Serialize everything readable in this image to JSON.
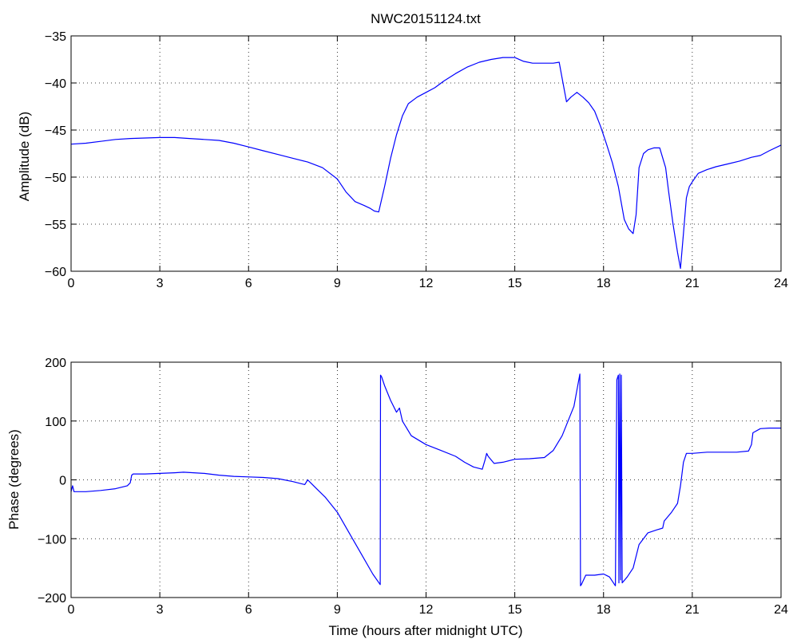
{
  "chart_data": [
    {
      "type": "line",
      "title": "NWC20151124.txt",
      "xlabel": "",
      "ylabel": "Amplitude (dB)",
      "xlim": [
        0,
        24
      ],
      "ylim": [
        -60,
        -35
      ],
      "xticks": [
        0,
        3,
        6,
        9,
        12,
        15,
        18,
        21,
        24
      ],
      "yticks": [
        -60,
        -55,
        -50,
        -45,
        -40,
        -35
      ],
      "xtick_labels": [
        "0",
        "3",
        "6",
        "9",
        "12",
        "15",
        "18",
        "21",
        "24"
      ],
      "ytick_labels": [
        "−60",
        "−55",
        "−50",
        "−45",
        "−40",
        "−35"
      ],
      "grid": true,
      "series": [
        {
          "color": "#0000ff",
          "x": [
            0,
            0.5,
            1,
            1.5,
            2,
            2.5,
            3,
            3.5,
            4,
            4.5,
            5,
            5.5,
            6,
            6.5,
            7,
            7.5,
            8,
            8.5,
            9,
            9.3,
            9.6,
            9.9,
            10.1,
            10.25,
            10.4,
            10.6,
            10.8,
            11,
            11.2,
            11.4,
            11.7,
            12,
            12.3,
            12.6,
            13,
            13.4,
            13.8,
            14.2,
            14.6,
            15,
            15.3,
            15.6,
            16,
            16.3,
            16.5,
            16.6,
            16.75,
            16.9,
            17.1,
            17.3,
            17.5,
            17.7,
            17.9,
            18.1,
            18.3,
            18.5,
            18.7,
            18.85,
            19,
            19.1,
            19.2,
            19.35,
            19.5,
            19.7,
            19.9,
            20.1,
            20.2,
            20.35,
            20.5,
            20.6,
            20.7,
            20.8,
            20.9,
            21,
            21.2,
            21.5,
            21.8,
            22.2,
            22.6,
            23,
            23.3,
            23.6,
            24
          ],
          "y": [
            -46.5,
            -46.4,
            -46.2,
            -46,
            -45.9,
            -45.85,
            -45.8,
            -45.8,
            -45.9,
            -46,
            -46.1,
            -46.4,
            -46.8,
            -47.2,
            -47.6,
            -48,
            -48.4,
            -49,
            -50.2,
            -51.6,
            -52.6,
            -53,
            -53.3,
            -53.6,
            -53.7,
            -51,
            -48,
            -45.5,
            -43.5,
            -42.2,
            -41.5,
            -41,
            -40.5,
            -39.8,
            -39,
            -38.3,
            -37.8,
            -37.5,
            -37.3,
            -37.3,
            -37.7,
            -37.9,
            -37.9,
            -37.9,
            -37.8,
            -39.5,
            -42,
            -41.5,
            -41,
            -41.5,
            -42.1,
            -43,
            -44.6,
            -46.5,
            -48.5,
            -51,
            -54.5,
            -55.5,
            -56,
            -54,
            -49,
            -47.5,
            -47.1,
            -46.9,
            -46.9,
            -49,
            -51.5,
            -55,
            -58,
            -59.7,
            -56,
            -52.2,
            -51,
            -50.5,
            -49.6,
            -49.2,
            -48.9,
            -48.6,
            -48.3,
            -47.9,
            -47.7,
            -47.2,
            -46.6
          ]
        }
      ]
    },
    {
      "type": "line",
      "title": "",
      "xlabel": "Time (hours after midnight UTC)",
      "ylabel": "Phase (degrees)",
      "xlim": [
        0,
        24
      ],
      "ylim": [
        -200,
        200
      ],
      "xticks": [
        0,
        3,
        6,
        9,
        12,
        15,
        18,
        21,
        24
      ],
      "yticks": [
        -200,
        -100,
        0,
        100,
        200
      ],
      "xtick_labels": [
        "0",
        "3",
        "6",
        "9",
        "12",
        "15",
        "18",
        "21",
        "24"
      ],
      "ytick_labels": [
        "−200",
        "−100",
        "0",
        "100",
        "200"
      ],
      "grid": true,
      "series": [
        {
          "color": "#0000ff",
          "x": [
            0,
            0.05,
            0.1,
            0.5,
            1,
            1.5,
            1.9,
            2,
            2.05,
            2.1,
            2.5,
            3,
            3.5,
            3.8,
            4.5,
            5,
            5.5,
            6,
            6.5,
            7,
            7.5,
            7.9,
            8,
            8.1,
            8.3,
            8.6,
            9,
            9.4,
            9.8,
            10.2,
            10.45,
            10.46,
            10.5,
            10.6,
            10.8,
            11,
            11.1,
            11.2,
            11.5,
            12,
            12.5,
            13,
            13.3,
            13.6,
            13.9,
            14,
            14.05,
            14.1,
            14.3,
            14.6,
            15,
            15.5,
            16,
            16.3,
            16.6,
            17,
            17.2,
            17.22,
            17.25,
            17.4,
            17.7,
            18,
            18.2,
            18.4,
            18.42,
            18.45,
            18.5,
            18.52,
            18.55,
            18.58,
            18.6,
            18.63,
            18.8,
            19,
            19.2,
            19.5,
            19.8,
            20,
            20.05,
            20.3,
            20.5,
            20.6,
            20.7,
            20.8,
            21,
            21.5,
            22,
            22.5,
            22.9,
            23,
            23.05,
            23.3,
            23.6,
            24
          ],
          "y": [
            -20,
            -10,
            -20,
            -20,
            -18,
            -15,
            -10,
            -5,
            8,
            10,
            10,
            11,
            12,
            13,
            11,
            8,
            6,
            5,
            4,
            2,
            -3,
            -8,
            0,
            -5,
            -15,
            -30,
            -55,
            -90,
            -125,
            -160,
            -178,
            178,
            175,
            160,
            135,
            115,
            122,
            100,
            75,
            60,
            50,
            40,
            30,
            22,
            18,
            35,
            45,
            40,
            28,
            30,
            35,
            36,
            38,
            50,
            75,
            125,
            180,
            -180,
            -178,
            -162,
            -162,
            -160,
            -165,
            -180,
            -40,
            170,
            178,
            -175,
            180,
            -170,
            178,
            -175,
            -165,
            -150,
            -110,
            -90,
            -85,
            -82,
            -70,
            -55,
            -40,
            -10,
            30,
            45,
            45,
            47,
            47,
            47,
            49,
            60,
            80,
            87,
            88,
            88
          ]
        }
      ]
    }
  ]
}
